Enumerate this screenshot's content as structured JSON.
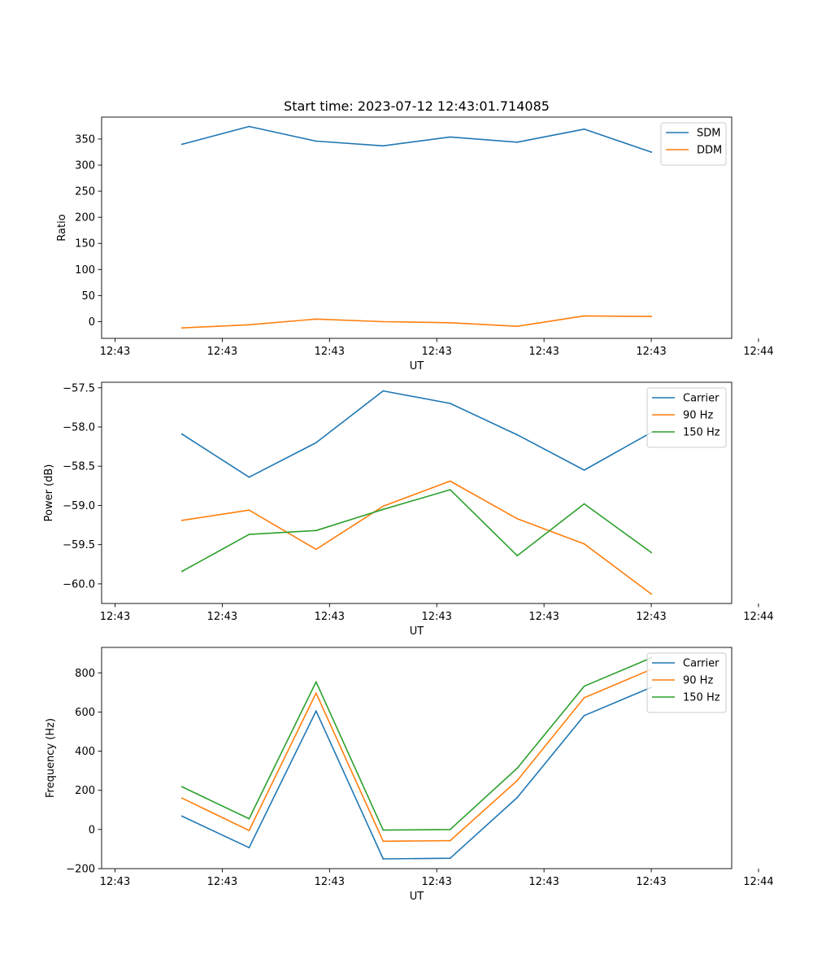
{
  "chart_data": [
    {
      "type": "line",
      "title": "Start time: 2023-07-12 12:43:01.714085",
      "xlabel": "UT",
      "ylabel": "Ratio",
      "x": [
        0.5,
        1,
        1.5,
        2,
        2.5,
        3,
        3.5,
        4
      ],
      "xlim": [
        -0.1,
        4.6
      ],
      "xticks": [
        0,
        0.8,
        1.6,
        2.4,
        3.2,
        4.0,
        4.8
      ],
      "xtick_labels": [
        "12:43",
        "12:43",
        "12:43",
        "12:43",
        "12:43",
        "12:43",
        "12:44"
      ],
      "ylim": [
        -32,
        392
      ],
      "yticks": [
        0,
        50,
        100,
        150,
        200,
        250,
        300,
        350
      ],
      "ytick_labels": [
        "0",
        "50",
        "100",
        "150",
        "200",
        "250",
        "300",
        "350"
      ],
      "legend": "top-right",
      "series": [
        {
          "name": "SDM",
          "color": "#1f77b4",
          "values": [
            340,
            374,
            346,
            337,
            354,
            344,
            369,
            325
          ]
        },
        {
          "name": "DDM",
          "color": "#ff7f0e",
          "values": [
            -12,
            -6,
            5,
            0,
            -2,
            -9,
            11,
            10
          ]
        }
      ]
    },
    {
      "type": "line",
      "title": "",
      "xlabel": "UT",
      "ylabel": "Power (dB)",
      "x": [
        0.5,
        1,
        1.5,
        2,
        2.5,
        3,
        3.5,
        4
      ],
      "xlim": [
        -0.1,
        4.6
      ],
      "xticks": [
        0,
        0.8,
        1.6,
        2.4,
        3.2,
        4.0,
        4.8
      ],
      "xtick_labels": [
        "12:43",
        "12:43",
        "12:43",
        "12:43",
        "12:43",
        "12:43",
        "12:44"
      ],
      "ylim": [
        -60.25,
        -57.43
      ],
      "yticks": [
        -60.0,
        -59.5,
        -59.0,
        -58.5,
        -58.0,
        -57.5
      ],
      "ytick_labels": [
        "−60.0",
        "−59.5",
        "−59.0",
        "−58.5",
        "−58.0",
        "−57.5"
      ],
      "legend": "top-right",
      "series": [
        {
          "name": "Carrier",
          "color": "#1f77b4",
          "values": [
            -58.09,
            -58.64,
            -58.2,
            -57.54,
            -57.7,
            -58.1,
            -58.55,
            -58.07
          ]
        },
        {
          "name": "90 Hz",
          "color": "#ff7f0e",
          "values": [
            -59.19,
            -59.06,
            -59.56,
            -59.01,
            -58.69,
            -59.17,
            -59.49,
            -60.13
          ]
        },
        {
          "name": "150 Hz",
          "color": "#2ca02c",
          "values": [
            -59.84,
            -59.37,
            -59.32,
            -59.05,
            -58.8,
            -59.64,
            -58.98,
            -59.6
          ]
        }
      ]
    },
    {
      "type": "line",
      "title": "",
      "xlabel": "UT",
      "ylabel": "Frequency (Hz)",
      "x": [
        0.5,
        1,
        1.5,
        2,
        2.5,
        3,
        3.5,
        4
      ],
      "xlim": [
        -0.1,
        4.6
      ],
      "xticks": [
        0,
        0.8,
        1.6,
        2.4,
        3.2,
        4.0,
        4.8
      ],
      "xtick_labels": [
        "12:43",
        "12:43",
        "12:43",
        "12:43",
        "12:43",
        "12:43",
        "12:44"
      ],
      "ylim": [
        -200,
        930
      ],
      "yticks": [
        -200,
        0,
        200,
        400,
        600,
        800
      ],
      "ytick_labels": [
        "−200",
        "0",
        "200",
        "400",
        "600",
        "800"
      ],
      "legend": "top-right",
      "series": [
        {
          "name": "Carrier",
          "color": "#1f77b4",
          "values": [
            68,
            -93,
            605,
            -150,
            -147,
            163,
            582,
            726
          ]
        },
        {
          "name": "90 Hz",
          "color": "#ff7f0e",
          "values": [
            160,
            -5,
            697,
            -60,
            -57,
            250,
            673,
            818
          ]
        },
        {
          "name": "150 Hz",
          "color": "#2ca02c",
          "values": [
            218,
            55,
            754,
            -3,
            0,
            313,
            732,
            877
          ]
        }
      ]
    }
  ]
}
